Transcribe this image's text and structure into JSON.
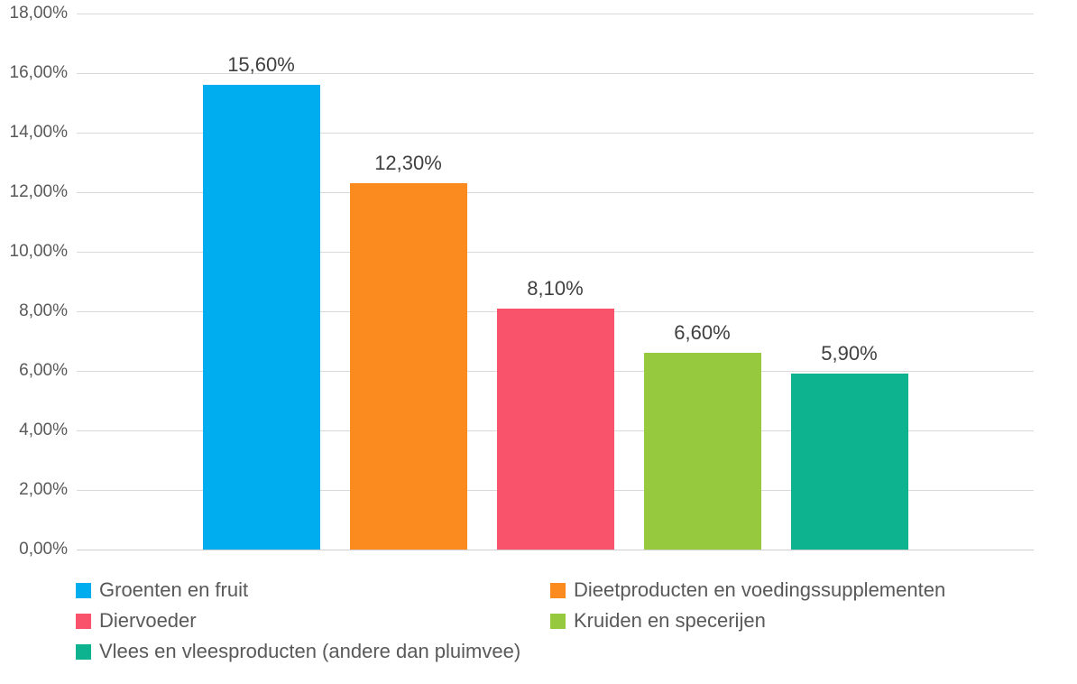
{
  "chart_data": {
    "type": "bar",
    "title": "",
    "xlabel": "",
    "ylabel": "",
    "categories": [
      "Groenten en fruit",
      "Dieetproducten en voedingssupplementen",
      "Diervoeder",
      "Kruiden en specerijen",
      "Vlees en vleesproducten (andere dan pluimvee)"
    ],
    "values": [
      15.6,
      12.3,
      8.1,
      6.6,
      5.9
    ],
    "data_labels": [
      "15,60%",
      "12,30%",
      "8,10%",
      "6,60%",
      "5,90%"
    ],
    "colors": [
      "#00AEEF",
      "#FB8B1E",
      "#F9536B",
      "#97C93F",
      "#0DB28F"
    ],
    "ylim": [
      0,
      18
    ],
    "ytick_step": 2,
    "ytick_labels": [
      "0,00%",
      "2,00%",
      "4,00%",
      "6,00%",
      "8,00%",
      "10,00%",
      "12,00%",
      "14,00%",
      "16,00%",
      "18,00%"
    ],
    "grid": true,
    "legend_position": "bottom",
    "decimal_separator": ","
  },
  "style": {
    "background": "#FFFFFF",
    "grid_color": "#D9D9D9",
    "baseline_color": "#D0CECE",
    "tick_text_color": "#595959",
    "data_label_color": "#404040",
    "legend_text_color": "#595959"
  }
}
